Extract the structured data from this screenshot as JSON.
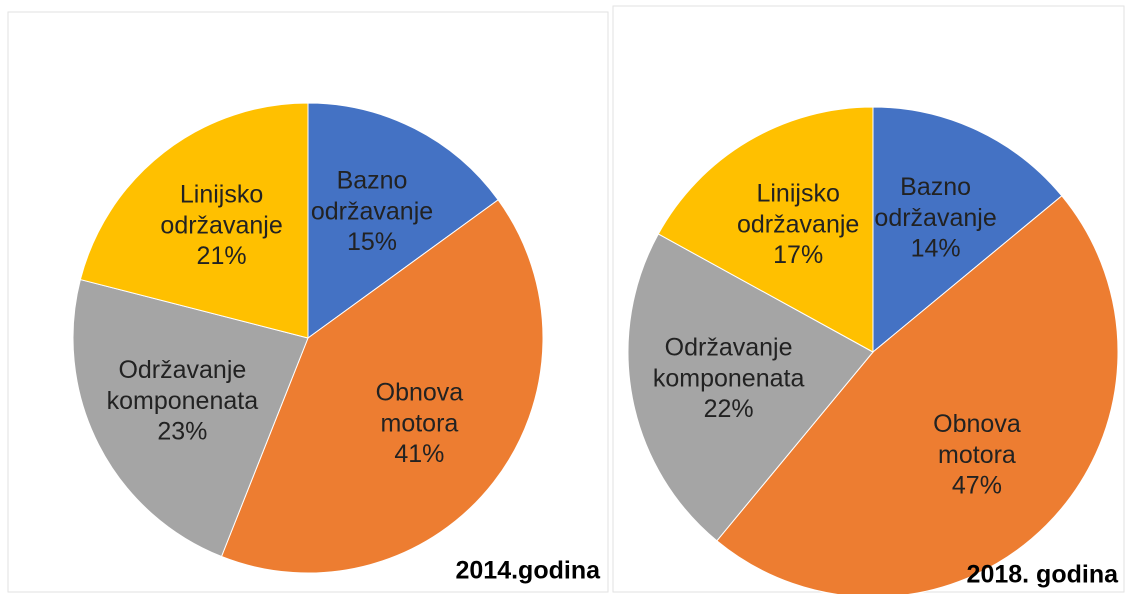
{
  "chart_data": [
    {
      "type": "pie",
      "title": "2014.godina",
      "categories": [
        "Bazno održavanje",
        "Obnova motora",
        "Održavanje komponenata",
        "Linijsko održavanje"
      ],
      "values": [
        15,
        41,
        23,
        21
      ],
      "value_labels": [
        "15%",
        "41%",
        "23%",
        "21%"
      ],
      "colors": [
        "#4472c4",
        "#ed7d31",
        "#a5a5a5",
        "#ffc000"
      ]
    },
    {
      "type": "pie",
      "title": "2018. godina",
      "categories": [
        "Bazno održavanje",
        "Obnova motora",
        "Održavanje komponenata",
        "Linijsko održavanje"
      ],
      "values": [
        14,
        47,
        22,
        17
      ],
      "value_labels": [
        "14%",
        "47%",
        "22%",
        "17%"
      ],
      "colors": [
        "#4472c4",
        "#ed7d31",
        "#a5a5a5",
        "#ffc000"
      ]
    }
  ]
}
